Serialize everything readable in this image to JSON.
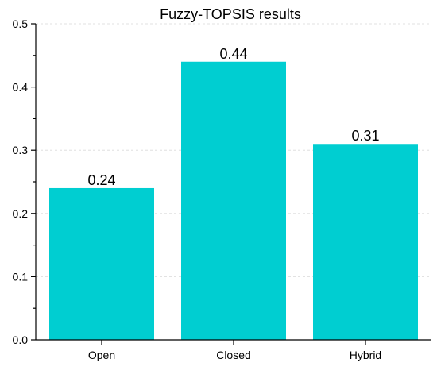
{
  "chart_data": {
    "type": "bar",
    "title": "Fuzzy-TOPSIS results",
    "categories": [
      "Open",
      "Closed",
      "Hybrid"
    ],
    "values": [
      0.24,
      0.44,
      0.31
    ],
    "data_labels": [
      "0.24",
      "0.44",
      "0.31"
    ],
    "y_ticks": [
      "0.0",
      "0.1",
      "0.2",
      "0.3",
      "0.4",
      "0.5"
    ],
    "xlabel": "",
    "ylabel": "",
    "ylim": [
      0,
      0.5
    ],
    "grid": true,
    "bar_color": "#00CED1"
  }
}
